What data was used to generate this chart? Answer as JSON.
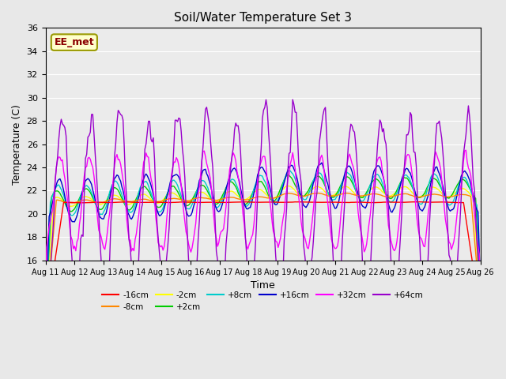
{
  "title": "Soil/Water Temperature Set 3",
  "xlabel": "Time",
  "ylabel": "Temperature (C)",
  "ylim": [
    16,
    36
  ],
  "yticks": [
    16,
    18,
    20,
    22,
    24,
    26,
    28,
    30,
    32,
    34,
    36
  ],
  "x_labels": [
    "Aug 11",
    "Aug 12",
    "Aug 13",
    "Aug 14",
    "Aug 15",
    "Aug 16",
    "Aug 17",
    "Aug 18",
    "Aug 19",
    "Aug 20",
    "Aug 21",
    "Aug 22",
    "Aug 23",
    "Aug 24",
    "Aug 25",
    "Aug 26"
  ],
  "watermark": "EE_met",
  "series_names": [
    "-16cm",
    "-8cm",
    "-2cm",
    "+2cm",
    "+8cm",
    "+16cm",
    "+32cm",
    "+64cm"
  ],
  "series_colors": [
    "#ff0000",
    "#ff8800",
    "#ffff00",
    "#00cc00",
    "#00cccc",
    "#0000cc",
    "#ff00ff",
    "#9900cc"
  ],
  "series_zorders": [
    5,
    4,
    3,
    3,
    3,
    3,
    6,
    7
  ],
  "bg_color": "#e8e8e8",
  "plot_bg_color": "#ebebeb"
}
